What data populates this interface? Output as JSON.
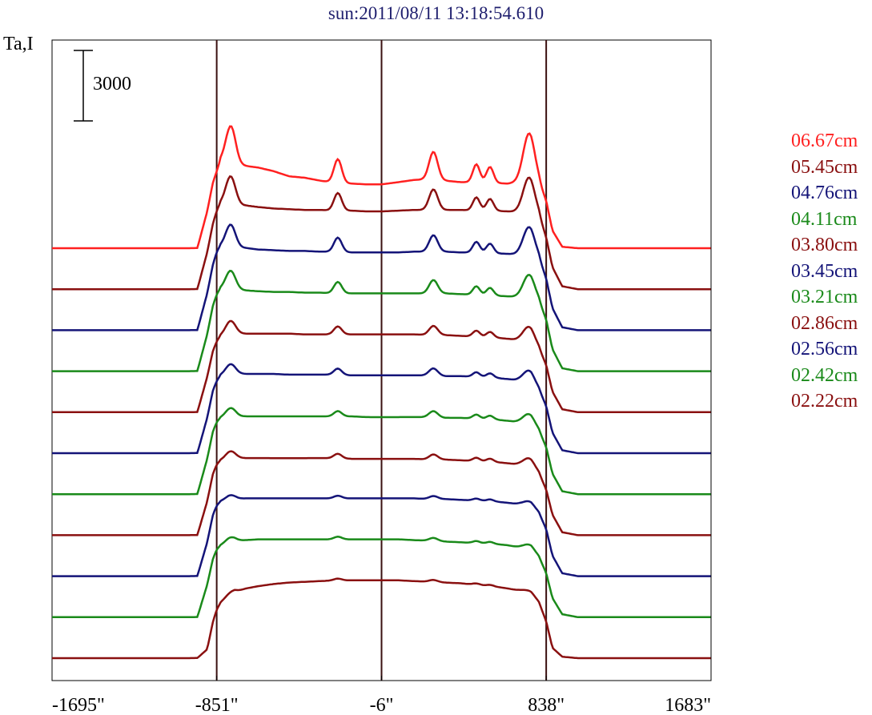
{
  "chart_data": {
    "type": "line",
    "title": "sun:2011/08/11 13:18:54.610",
    "ylabel": "Ta,I",
    "scale_bar": {
      "value": 3000,
      "label": "3000"
    },
    "x_ticks": [
      -1695,
      -851,
      -6,
      838,
      1683
    ],
    "x_tick_labels": [
      "-1695\"",
      "-851\"",
      "-6\"",
      "838\"",
      "1683\""
    ],
    "xlim": [
      -1695,
      1683
    ],
    "vertical_lines": [
      -851,
      -6,
      838
    ],
    "profile_offset": 3000,
    "profile_x": [
      -1695,
      -1150,
      -1000,
      -950,
      -900,
      -870,
      -851,
      -830,
      -790,
      -760,
      -700,
      -640,
      -560,
      -480,
      -400,
      -320,
      -240,
      -160,
      -80,
      -6,
      80,
      160,
      240,
      320,
      400,
      480,
      560,
      640,
      700,
      760,
      800,
      838,
      870,
      920,
      1000,
      1150,
      1683
    ],
    "peaks": [
      {
        "x": -780,
        "a": 1.0,
        "w": 25
      },
      {
        "x": -230,
        "a": 0.6,
        "w": 20
      },
      {
        "x": 260,
        "a": 0.7,
        "w": 22
      },
      {
        "x": 480,
        "a": 0.45,
        "w": 18
      },
      {
        "x": 550,
        "a": 0.4,
        "w": 18
      },
      {
        "x": 750,
        "a": 1.2,
        "w": 30
      }
    ],
    "series": [
      {
        "name": "06.67cm",
        "color": "#ff2020",
        "peak_scale": 2700,
        "shape": [
          0,
          0,
          0,
          10,
          2500,
          4500,
          5200,
          5900,
          5600,
          5700,
          5600,
          5500,
          5250,
          4900,
          4800,
          4600,
          4450,
          4400,
          4350,
          4350,
          4500,
          4650,
          4700,
          4600,
          4500,
          4500,
          4450,
          4400,
          4500,
          4600,
          4300,
          3200,
          1200,
          100,
          0,
          0,
          0
        ]
      },
      {
        "name": "05.45cm",
        "color": "#8a1010",
        "peak_scale": 2000,
        "shape": [
          0,
          0,
          0,
          10,
          2500,
          4500,
          5300,
          5800,
          5700,
          5700,
          5700,
          5600,
          5500,
          5450,
          5400,
          5400,
          5350,
          5350,
          5300,
          5300,
          5350,
          5400,
          5400,
          5400,
          5400,
          5350,
          5350,
          5300,
          5250,
          5200,
          4900,
          3500,
          1500,
          200,
          0,
          0,
          0
        ]
      },
      {
        "name": "04.76cm",
        "color": "#141478",
        "peak_scale": 1600,
        "shape": [
          0,
          0,
          0,
          10,
          2500,
          4500,
          5300,
          5700,
          5600,
          5600,
          5600,
          5500,
          5450,
          5400,
          5400,
          5350,
          5350,
          5300,
          5300,
          5300,
          5300,
          5350,
          5350,
          5350,
          5300,
          5300,
          5250,
          5200,
          5150,
          5100,
          4800,
          3500,
          1500,
          200,
          0,
          0,
          0
        ]
      },
      {
        "name": "04.11cm",
        "color": "#1a8a1a",
        "peak_scale": 1300,
        "shape": [
          0,
          0,
          0,
          10,
          2500,
          4500,
          5200,
          5600,
          5550,
          5550,
          5500,
          5450,
          5400,
          5400,
          5350,
          5350,
          5300,
          5300,
          5300,
          5300,
          5300,
          5300,
          5300,
          5300,
          5250,
          5200,
          5150,
          5100,
          5050,
          5000,
          4700,
          3500,
          1500,
          200,
          0,
          0,
          0
        ]
      },
      {
        "name": "03.80cm",
        "color": "#8a1010",
        "peak_scale": 900,
        "shape": [
          0,
          0,
          0,
          10,
          2400,
          4200,
          4800,
          5200,
          5300,
          5350,
          5350,
          5350,
          5350,
          5350,
          5300,
          5300,
          5300,
          5300,
          5300,
          5300,
          5300,
          5300,
          5250,
          5250,
          5200,
          5150,
          5100,
          5000,
          4900,
          4700,
          4300,
          3200,
          1400,
          200,
          0,
          0,
          0
        ]
      },
      {
        "name": "03.45cm",
        "color": "#141478",
        "peak_scale": 700,
        "shape": [
          0,
          0,
          0,
          10,
          2400,
          4300,
          4900,
          5300,
          5350,
          5400,
          5400,
          5400,
          5400,
          5350,
          5350,
          5350,
          5350,
          5300,
          5300,
          5300,
          5300,
          5300,
          5300,
          5250,
          5250,
          5200,
          5150,
          5050,
          4950,
          4750,
          4300,
          3200,
          1400,
          200,
          0,
          0,
          0
        ]
      },
      {
        "name": "03.21cm",
        "color": "#1a8a1a",
        "peak_scale": 600,
        "shape": [
          0,
          0,
          0,
          10,
          2400,
          4300,
          4900,
          5200,
          5250,
          5300,
          5300,
          5300,
          5300,
          5300,
          5300,
          5300,
          5300,
          5300,
          5250,
          5250,
          5250,
          5250,
          5250,
          5200,
          5200,
          5150,
          5100,
          5000,
          4900,
          4700,
          4300,
          3200,
          1400,
          200,
          0,
          0,
          0
        ]
      },
      {
        "name": "02.86cm",
        "color": "#8a1010",
        "peak_scale": 500,
        "shape": [
          0,
          0,
          0,
          10,
          2300,
          4200,
          4800,
          5100,
          5200,
          5250,
          5250,
          5250,
          5250,
          5250,
          5250,
          5250,
          5250,
          5200,
          5200,
          5200,
          5200,
          5200,
          5150,
          5150,
          5100,
          5050,
          5000,
          4900,
          4800,
          4600,
          4200,
          3100,
          1400,
          200,
          0,
          0,
          0
        ]
      },
      {
        "name": "02.56cm",
        "color": "#141478",
        "peak_scale": 300,
        "shape": [
          0,
          0,
          0,
          10,
          2300,
          4200,
          4800,
          5100,
          5200,
          5250,
          5300,
          5300,
          5300,
          5300,
          5300,
          5300,
          5300,
          5300,
          5300,
          5300,
          5300,
          5300,
          5250,
          5250,
          5200,
          5150,
          5100,
          5000,
          4900,
          4700,
          4300,
          3200,
          1400,
          200,
          0,
          0,
          0
        ]
      },
      {
        "name": "02.42cm",
        "color": "#1a8a1a",
        "peak_scale": 300,
        "shape": [
          0,
          0,
          0,
          10,
          2200,
          4000,
          4600,
          4900,
          5100,
          5200,
          5250,
          5300,
          5300,
          5300,
          5300,
          5300,
          5300,
          5300,
          5300,
          5300,
          5300,
          5250,
          5200,
          5150,
          5100,
          5050,
          5000,
          4900,
          4750,
          4550,
          4100,
          3000,
          1300,
          200,
          0,
          0,
          0
        ]
      },
      {
        "name": "02.22cm",
        "color": "#8a1010",
        "peak_scale": 200,
        "shape": [
          0,
          0,
          0,
          10,
          600,
          2500,
          3300,
          3800,
          4200,
          4500,
          4750,
          4900,
          5050,
          5150,
          5200,
          5250,
          5300,
          5300,
          5300,
          5300,
          5300,
          5250,
          5200,
          5150,
          5100,
          5000,
          4900,
          4750,
          4600,
          4300,
          3800,
          2500,
          700,
          100,
          0,
          0,
          0
        ]
      }
    ]
  }
}
